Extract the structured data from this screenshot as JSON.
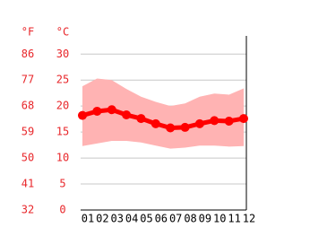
{
  "chart_data": {
    "type": "line",
    "ylabel": "°C",
    "y2label": "°F",
    "categories": [
      "01",
      "02",
      "03",
      "04",
      "05",
      "06",
      "07",
      "08",
      "09",
      "10",
      "11",
      "12"
    ],
    "series": [
      {
        "color": "#ff0000",
        "values": [
          18.2,
          19.0,
          19.3,
          18.3,
          17.6,
          16.6,
          15.8,
          15.9,
          16.6,
          17.2,
          17.1,
          17.6
        ]
      }
    ],
    "range": {
      "color": "#ffb3b3",
      "high": [
        23.8,
        25.3,
        25.0,
        23.3,
        21.8,
        20.8,
        20.0,
        20.5,
        21.8,
        22.4,
        22.2,
        23.4
      ],
      "low": [
        12.3,
        12.8,
        13.3,
        13.3,
        13.0,
        12.4,
        11.8,
        12.0,
        12.4,
        12.4,
        12.2,
        12.3
      ]
    },
    "ylim": [
      0,
      33.5
    ],
    "yticks": [
      0,
      5,
      10,
      15,
      20,
      25,
      30
    ],
    "y2lim": [
      32,
      92.3
    ],
    "y2ticks": [
      32,
      41,
      50,
      59,
      68,
      77,
      86
    ],
    "tick_color": "#e8262a",
    "grid": true
  }
}
